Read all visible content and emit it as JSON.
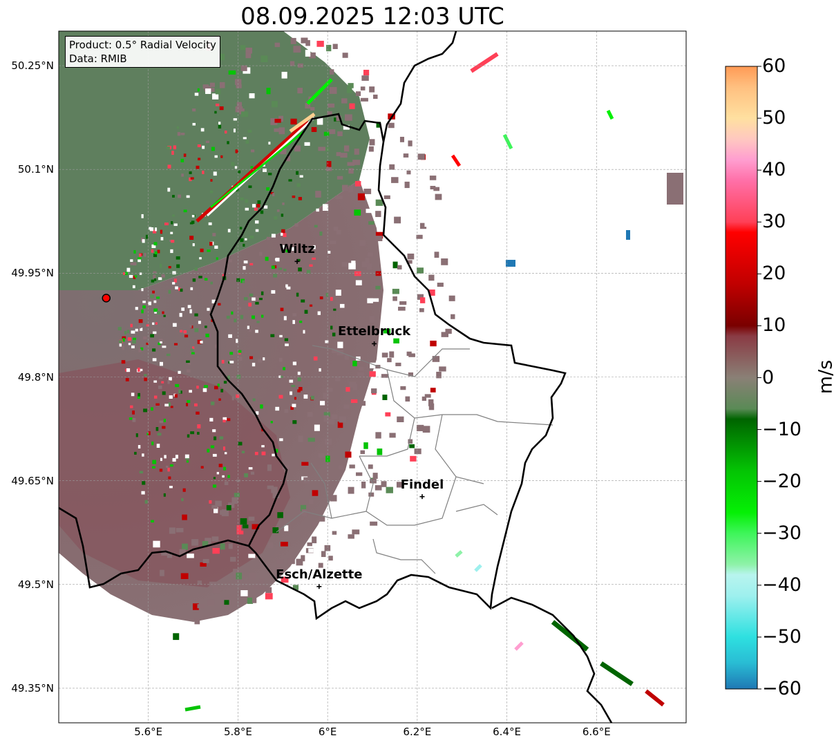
{
  "title": "08.09.2025 12:03 UTC",
  "info": {
    "product": "Product: 0.5° Radial Velocity",
    "source": "Data: RMIB"
  },
  "map": {
    "lon_range": [
      5.4,
      6.8
    ],
    "lat_range": [
      49.3,
      50.3
    ],
    "lat_ticks": [
      {
        "value": 50.25,
        "label": "50.25°N"
      },
      {
        "value": 50.1,
        "label": "50.1°N"
      },
      {
        "value": 49.95,
        "label": "49.95°N"
      },
      {
        "value": 49.8,
        "label": "49.8°N"
      },
      {
        "value": 49.65,
        "label": "49.65°N"
      },
      {
        "value": 49.5,
        "label": "49.5°N"
      },
      {
        "value": 49.35,
        "label": "49.35°N"
      }
    ],
    "lon_ticks": [
      {
        "value": 5.6,
        "label": "5.6°E"
      },
      {
        "value": 5.8,
        "label": "5.8°E"
      },
      {
        "value": 6.0,
        "label": "6°E"
      },
      {
        "value": 6.2,
        "label": "6.2°E"
      },
      {
        "value": 6.4,
        "label": "6.4°E"
      },
      {
        "value": 6.6,
        "label": "6.6°E"
      }
    ],
    "radar_site": {
      "lon": 5.506,
      "lat": 49.914
    },
    "cities": [
      {
        "name": "Wiltz",
        "lon": 5.932,
        "lat": 49.967
      },
      {
        "name": "Ettelbruck",
        "lon": 6.104,
        "lat": 49.848
      },
      {
        "name": "Findel",
        "lon": 6.211,
        "lat": 49.627
      },
      {
        "name": "Esch/Alzette",
        "lon": 5.981,
        "lat": 49.497
      }
    ]
  },
  "colorbar": {
    "min": -60,
    "max": 60,
    "ticks": [
      {
        "value": 60,
        "label": "60"
      },
      {
        "value": 50,
        "label": "50"
      },
      {
        "value": 40,
        "label": "40"
      },
      {
        "value": 30,
        "label": "30"
      },
      {
        "value": 20,
        "label": "20"
      },
      {
        "value": 10,
        "label": "10"
      },
      {
        "value": 0,
        "label": "0"
      },
      {
        "value": -10,
        "label": "−10"
      },
      {
        "value": -20,
        "label": "−20"
      },
      {
        "value": -30,
        "label": "−30"
      },
      {
        "value": -40,
        "label": "−40"
      },
      {
        "value": -50,
        "label": "−50"
      },
      {
        "value": -60,
        "label": "−60"
      }
    ],
    "label": "m/s",
    "stops": [
      {
        "value": -60,
        "color": "#1f78b4"
      },
      {
        "value": -55,
        "color": "#29bcd4"
      },
      {
        "value": -50,
        "color": "#2ee0e0"
      },
      {
        "value": -42,
        "color": "#9ef0ee"
      },
      {
        "value": -38,
        "color": "#b8f4ee"
      },
      {
        "value": -36,
        "color": "#8ef2a8"
      },
      {
        "value": -30,
        "color": "#3ef55a"
      },
      {
        "value": -26,
        "color": "#05f005"
      },
      {
        "value": -18,
        "color": "#04c404"
      },
      {
        "value": -8,
        "color": "#006400"
      },
      {
        "value": -6,
        "color": "#5a8a56"
      },
      {
        "value": 0,
        "color": "#8a8076"
      },
      {
        "value": 8,
        "color": "#8a3b44"
      },
      {
        "value": 10,
        "color": "#7a0000"
      },
      {
        "value": 18,
        "color": "#c00000"
      },
      {
        "value": 28,
        "color": "#ff0000"
      },
      {
        "value": 30,
        "color": "#ff4057"
      },
      {
        "value": 38,
        "color": "#ff70a8"
      },
      {
        "value": 42,
        "color": "#ff9ed0"
      },
      {
        "value": 46,
        "color": "#ffc8c0"
      },
      {
        "value": 50,
        "color": "#ffe0a0"
      },
      {
        "value": 56,
        "color": "#ffc080"
      },
      {
        "value": 60,
        "color": "#ff9a55"
      }
    ]
  }
}
